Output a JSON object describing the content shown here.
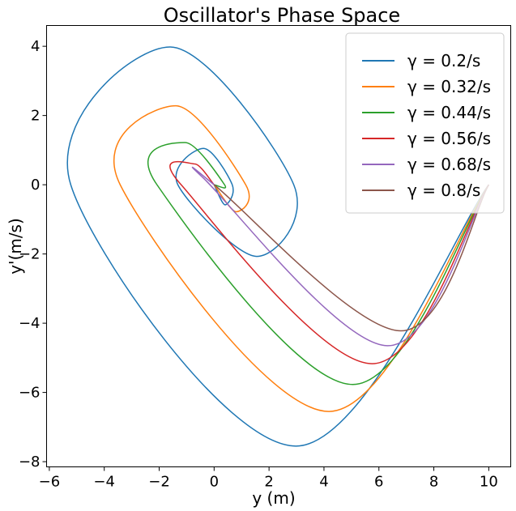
{
  "chart_data": {
    "type": "line",
    "title": "Oscillator's Phase Space",
    "xlabel": "y (m)",
    "ylabel": "y'(m/s)",
    "xlim": [
      -6.1,
      10.8
    ],
    "ylim": [
      -8.15,
      4.6
    ],
    "xticks": [
      -6,
      -4,
      -2,
      0,
      2,
      4,
      6,
      8,
      10
    ],
    "yticks": [
      -8,
      -6,
      -4,
      -2,
      0,
      2,
      4
    ],
    "xtick_labels": [
      "−6",
      "−4",
      "−2",
      "0",
      "2",
      "4",
      "6",
      "8",
      "10"
    ],
    "ytick_labels": [
      "−8",
      "−6",
      "−4",
      "−2",
      "0",
      "2",
      "4"
    ],
    "grid": false,
    "legend_position": "top-right",
    "initial_condition": {
      "y": 10,
      "dy": 0
    },
    "series": [
      {
        "name": "γ = 0.2/s",
        "gamma": 0.2,
        "color": "#1f77b4",
        "points": [
          [
            10,
            0
          ],
          [
            2.98,
            -7.55
          ],
          [
            -5.22,
            0
          ],
          [
            -1.6,
            3.98
          ],
          [
            2.9,
            0
          ],
          [
            1.55,
            -2.07
          ],
          [
            -1.32,
            0
          ],
          [
            -0.39,
            1.05
          ],
          [
            0.66,
            0
          ],
          [
            0.4,
            -0.58
          ],
          [
            0,
            0
          ]
        ]
      },
      {
        "name": "γ = 0.32/s",
        "gamma": 0.32,
        "color": "#ff7f0e",
        "points": [
          [
            10,
            0
          ],
          [
            4.18,
            -6.55
          ],
          [
            -3.42,
            0
          ],
          [
            -1.4,
            2.28
          ],
          [
            1.15,
            0
          ],
          [
            0.8,
            -0.78
          ],
          [
            0,
            0
          ]
        ]
      },
      {
        "name": "γ = 0.44/s",
        "gamma": 0.44,
        "color": "#2ca02c",
        "points": [
          [
            10,
            0
          ],
          [
            5.05,
            -5.77
          ],
          [
            -2.08,
            0
          ],
          [
            -1.05,
            1.22
          ],
          [
            0.38,
            0
          ],
          [
            0,
            0
          ]
        ]
      },
      {
        "name": "γ = 0.56/s",
        "gamma": 0.56,
        "color": "#d62728",
        "points": [
          [
            10,
            0
          ],
          [
            5.75,
            -5.17
          ],
          [
            -1.2,
            0
          ],
          [
            -0.7,
            0.6
          ],
          [
            0,
            0
          ]
        ]
      },
      {
        "name": "γ = 0.68/s",
        "gamma": 0.68,
        "color": "#9467bd",
        "points": [
          [
            10,
            0
          ],
          [
            6.3,
            -4.65
          ],
          [
            -0.4,
            0.2
          ],
          [
            0,
            0
          ]
        ]
      },
      {
        "name": "γ = 0.8/s",
        "gamma": 0.8,
        "color": "#8c564b",
        "points": [
          [
            10,
            0
          ],
          [
            6.8,
            -4.22
          ],
          [
            0,
            0
          ]
        ]
      }
    ]
  }
}
